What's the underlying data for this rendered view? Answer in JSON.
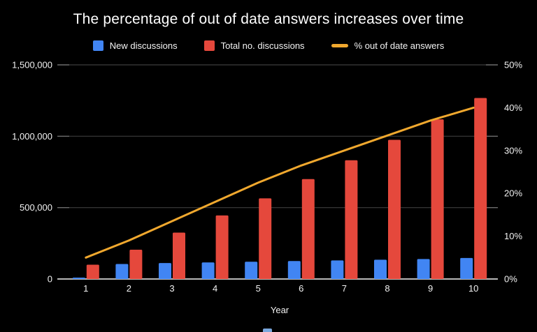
{
  "page": {
    "background": "#000000",
    "text_color": "#ffffff"
  },
  "chart": {
    "title": "The percentage of out of date answers increases over time",
    "legend": {
      "items": [
        {
          "label": "New discussions",
          "color": "#4185F3",
          "shape": "square"
        },
        {
          "label": "Total no. discussions",
          "color": "#E5483C",
          "shape": "square"
        },
        {
          "label": "% out of date answers",
          "color": "#F0A82E",
          "shape": "dash"
        }
      ]
    }
  },
  "chart_data": {
    "type": "combo-bar-line",
    "title": "The percentage of out of date answers increases over time",
    "xlabel": "Year",
    "categories": [
      "1",
      "2",
      "3",
      "4",
      "5",
      "6",
      "7",
      "8",
      "9",
      "10"
    ],
    "series": [
      {
        "name": "New discussions",
        "type": "bar",
        "axis": "left",
        "color": "#4185F3",
        "values": [
          10000,
          105000,
          112000,
          116000,
          121000,
          126000,
          130000,
          135000,
          140000,
          147000
        ]
      },
      {
        "name": "Total no. discussions",
        "type": "bar",
        "axis": "left",
        "color": "#E5483C",
        "values": [
          100000,
          205000,
          325000,
          445000,
          565000,
          700000,
          832000,
          975000,
          1118000,
          1268000
        ]
      },
      {
        "name": "% out of date answers",
        "type": "line",
        "axis": "right",
        "color": "#F0A82E",
        "values": [
          5,
          9,
          13.5,
          18,
          22.5,
          26.5,
          30,
          33.5,
          37,
          40
        ]
      }
    ],
    "left_axis": {
      "min": 0,
      "max": 1500000,
      "tick_values": [
        0,
        500000,
        1000000,
        1500000
      ],
      "tick_labels": [
        "0",
        "500,000",
        "1,000,000",
        "1,500,000"
      ]
    },
    "right_axis": {
      "min": 0,
      "max": 50,
      "tick_values": [
        0,
        10,
        20,
        30,
        40,
        50
      ],
      "tick_labels": [
        "0%",
        "10%",
        "20%",
        "30%",
        "40%",
        "50%"
      ]
    },
    "grid": true,
    "legend_position": "top",
    "colors": {
      "gridline": "#3d3d3d",
      "tick_stub": "#7a7a7a",
      "baseline": "#b8b8b8",
      "axis_text": "#f2f2f2"
    }
  },
  "artifacts": {
    "bottom_partial_element_color": "#7AA7DD"
  }
}
